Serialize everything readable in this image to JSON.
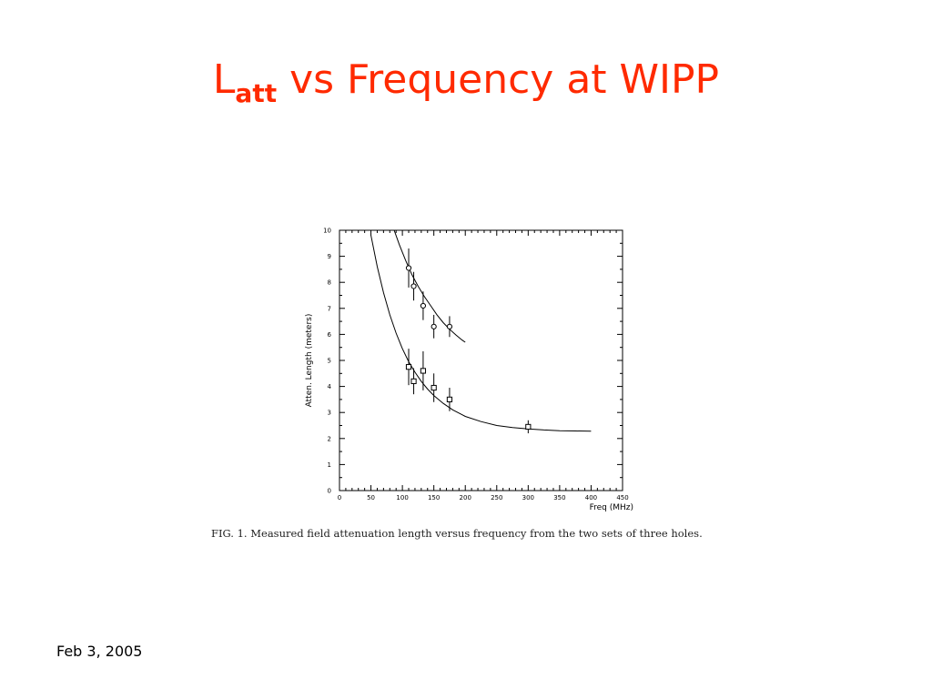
{
  "slide": {
    "title_main": "L",
    "title_sub": "att",
    "title_rest": " vs Frequency at WIPP",
    "caption": "FIG. 1.  Measured field attenuation length versus frequency from the two sets of three holes.",
    "footer_date": "Feb 3, 2005",
    "title_color": "#ff2a00"
  },
  "chart_data": {
    "type": "scatter",
    "xlabel": "Freq (MHz)",
    "ylabel": "Atten. Length (meters)",
    "xlim": [
      0,
      450
    ],
    "ylim": [
      0,
      10
    ],
    "xticks": [
      0,
      50,
      100,
      150,
      200,
      250,
      300,
      350,
      400,
      450
    ],
    "yticks": [
      0,
      1,
      2,
      3,
      4,
      5,
      6,
      7,
      8,
      9,
      10
    ],
    "grid": false,
    "series": [
      {
        "marker": "circle",
        "points": [
          {
            "x": 110,
            "y": 8.55,
            "err": 0.75
          },
          {
            "x": 118,
            "y": 7.85,
            "err": 0.55
          },
          {
            "x": 133,
            "y": 7.1,
            "err": 0.55
          },
          {
            "x": 150,
            "y": 6.3,
            "err": 0.45
          },
          {
            "x": 175,
            "y": 6.3,
            "err": 0.4
          }
        ],
        "fit": [
          [
            87,
            10.0
          ],
          [
            95,
            9.45
          ],
          [
            105,
            8.85
          ],
          [
            115,
            8.3
          ],
          [
            125,
            7.85
          ],
          [
            135,
            7.45
          ],
          [
            145,
            7.1
          ],
          [
            155,
            6.75
          ],
          [
            165,
            6.45
          ],
          [
            175,
            6.2
          ],
          [
            185,
            5.98
          ],
          [
            195,
            5.78
          ],
          [
            200,
            5.7
          ]
        ]
      },
      {
        "marker": "square",
        "points": [
          {
            "x": 110,
            "y": 4.75,
            "err": 0.7
          },
          {
            "x": 118,
            "y": 4.2,
            "err": 0.5
          },
          {
            "x": 133,
            "y": 4.6,
            "err": 0.75
          },
          {
            "x": 150,
            "y": 3.95,
            "err": 0.55
          },
          {
            "x": 175,
            "y": 3.5,
            "err": 0.45
          },
          {
            "x": 300,
            "y": 2.45,
            "err": 0.25
          }
        ],
        "fit": [
          [
            50,
            9.8
          ],
          [
            60,
            8.6
          ],
          [
            70,
            7.6
          ],
          [
            80,
            6.75
          ],
          [
            90,
            6.05
          ],
          [
            100,
            5.45
          ],
          [
            110,
            4.95
          ],
          [
            120,
            4.55
          ],
          [
            130,
            4.2
          ],
          [
            140,
            3.9
          ],
          [
            150,
            3.65
          ],
          [
            165,
            3.35
          ],
          [
            180,
            3.1
          ],
          [
            200,
            2.85
          ],
          [
            225,
            2.65
          ],
          [
            250,
            2.5
          ],
          [
            275,
            2.42
          ],
          [
            300,
            2.37
          ],
          [
            325,
            2.33
          ],
          [
            350,
            2.3
          ],
          [
            375,
            2.29
          ],
          [
            400,
            2.28
          ]
        ]
      }
    ]
  }
}
